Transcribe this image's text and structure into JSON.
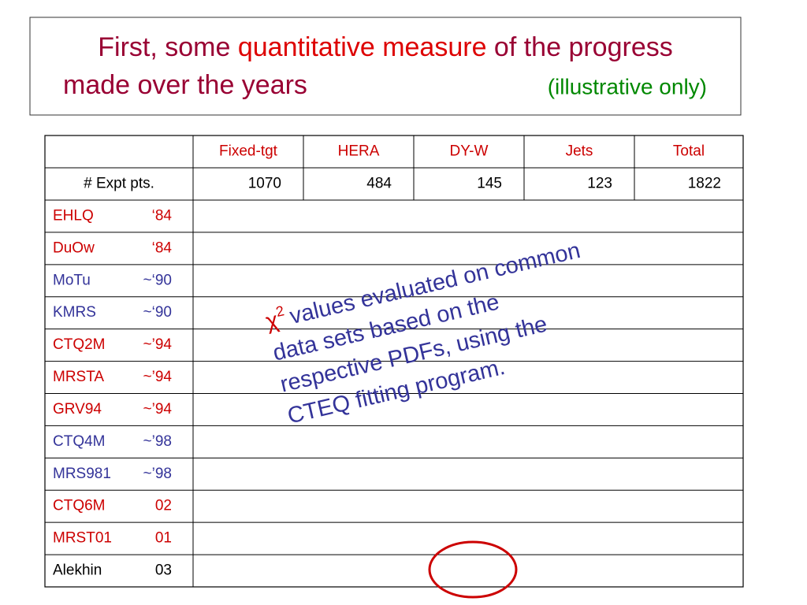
{
  "title": {
    "parts": [
      "First, some ",
      "quantitative measure",
      " of the progress",
      "made over the years"
    ],
    "note": "(illustrative only)"
  },
  "table": {
    "columns": [
      "Fixed-tgt",
      "HERA",
      "DY-W",
      "Jets",
      "Total"
    ],
    "expt_row": {
      "label": "# Expt pts.",
      "values": [
        1070,
        484,
        145,
        123,
        1822
      ]
    },
    "rows": [
      {
        "name": "EHLQ",
        "year": "‘84",
        "color": "#cc0000"
      },
      {
        "name": "DuOw",
        "year": "‘84",
        "color": "#cc0000"
      },
      {
        "name": "MoTu",
        "year": "~‘90",
        "color": "#333399"
      },
      {
        "name": "KMRS",
        "year": "~‘90",
        "color": "#333399"
      },
      {
        "name": "CTQ2M",
        "year": "~’94",
        "color": "#cc0000"
      },
      {
        "name": "MRSTA",
        "year": "~’94",
        "color": "#cc0000"
      },
      {
        "name": "GRV94",
        "year": "~’94",
        "color": "#cc0000"
      },
      {
        "name": "CTQ4M",
        "year": "~’98",
        "color": "#333399"
      },
      {
        "name": "MRS981",
        "year": "~’98",
        "color": "#333399"
      },
      {
        "name": "CTQ6M",
        "year": "02",
        "color": "#cc0000"
      },
      {
        "name": "MRST01",
        "year": "01",
        "color": "#cc0000"
      },
      {
        "name": "Alekhin",
        "year": "03",
        "color": "#000000"
      }
    ]
  },
  "annotation": {
    "symbol": "χ",
    "superscript": "2",
    "lines": [
      "values evaluated on common",
      "data sets based on the",
      "respective PDFs, using the",
      "CTEQ fitting program."
    ]
  }
}
